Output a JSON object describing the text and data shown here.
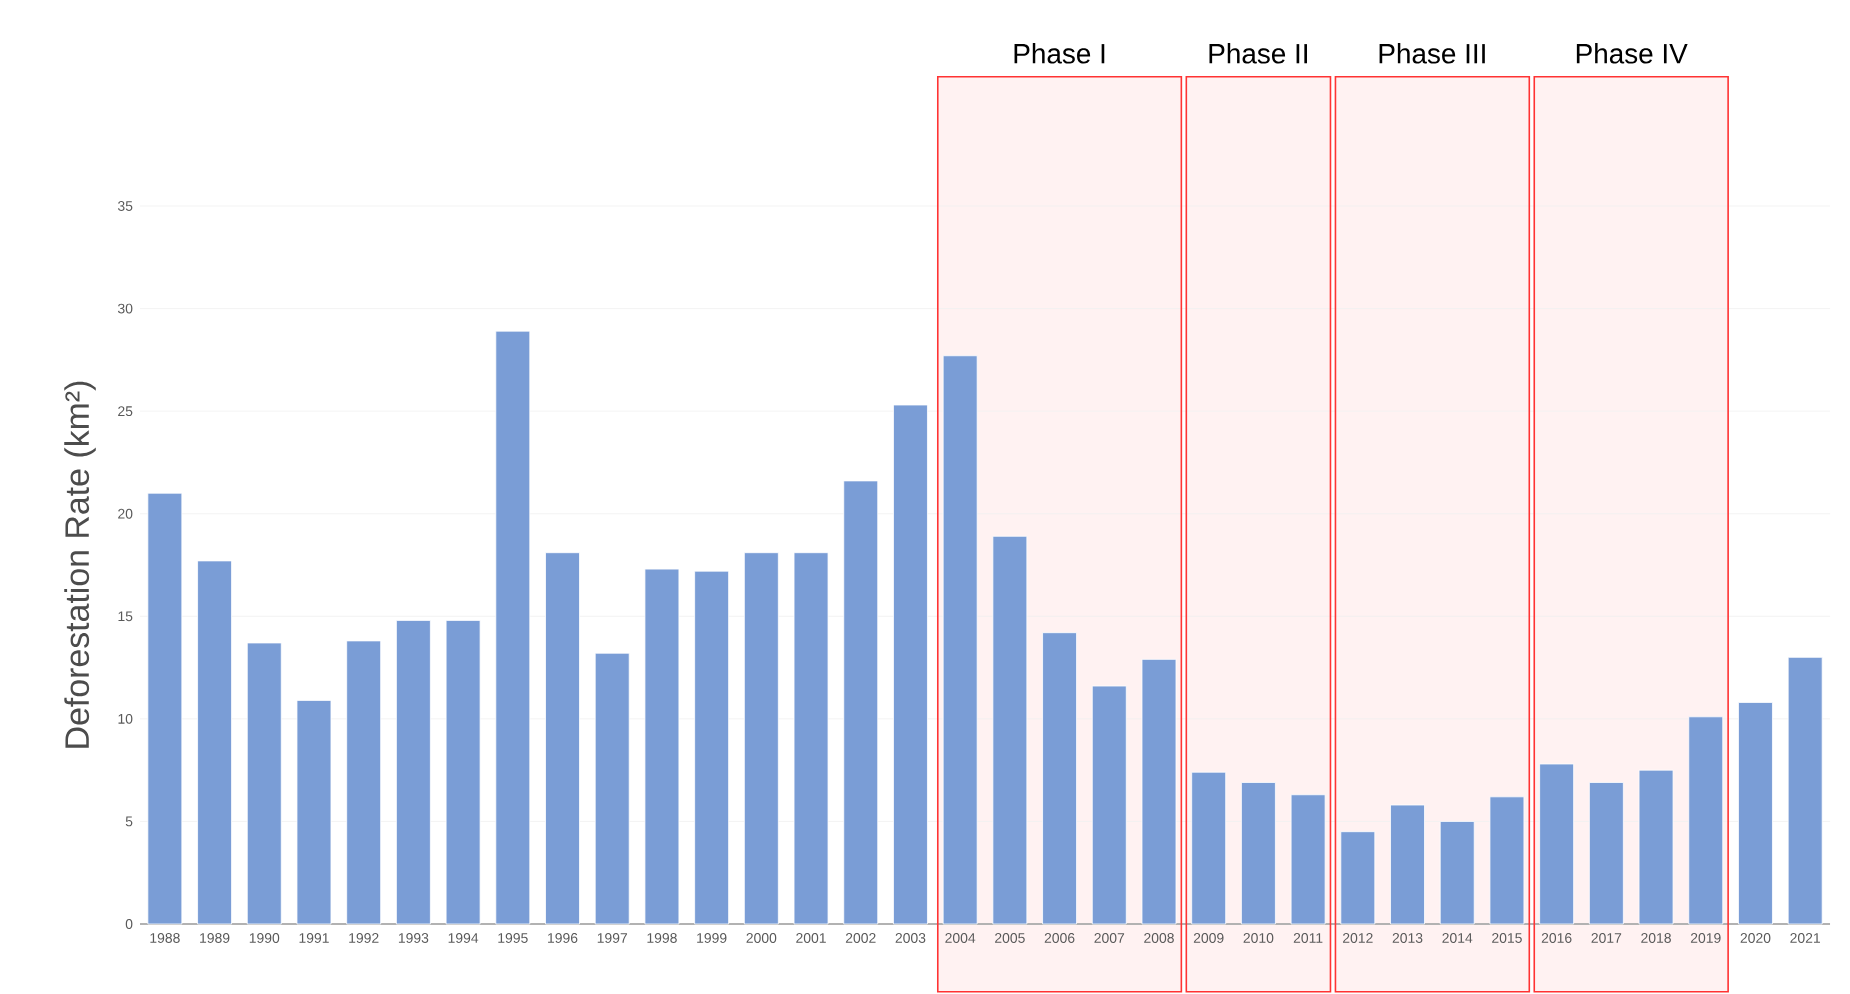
{
  "chart_data": {
    "type": "bar",
    "ylabel": "Deforestation Rate (km²)",
    "categories": [
      "1988",
      "1989",
      "1990",
      "1991",
      "1992",
      "1993",
      "1994",
      "1995",
      "1996",
      "1997",
      "1998",
      "1999",
      "2000",
      "2001",
      "2002",
      "2003",
      "2004",
      "2005",
      "2006",
      "2007",
      "2008",
      "2009",
      "2010",
      "2011",
      "2012",
      "2013",
      "2014",
      "2015",
      "2016",
      "2017",
      "2018",
      "2019",
      "2020",
      "2021"
    ],
    "values": [
      21.0,
      17.7,
      13.7,
      10.9,
      13.8,
      14.8,
      14.8,
      28.9,
      18.1,
      13.2,
      17.3,
      17.2,
      18.1,
      18.1,
      21.6,
      25.3,
      27.7,
      18.9,
      14.2,
      11.6,
      12.9,
      7.4,
      6.9,
      6.3,
      4.5,
      5.8,
      5.0,
      6.2,
      7.8,
      6.9,
      7.5,
      10.1,
      10.8,
      13.0
    ],
    "color": "#7a9dd6",
    "ylim": [
      0,
      35
    ],
    "yticks": [
      0,
      5,
      10,
      15,
      20,
      25,
      30,
      35
    ],
    "grid": "y",
    "bands": [
      {
        "axis": "x",
        "from": "2004",
        "to": "2008",
        "label": "Phase I"
      },
      {
        "axis": "x",
        "from": "2009",
        "to": "2011",
        "label": "Phase II"
      },
      {
        "axis": "x",
        "from": "2012",
        "to": "2015",
        "label": "Phase III"
      },
      {
        "axis": "x",
        "from": "2016",
        "to": "2019",
        "label": "Phase IV"
      }
    ]
  }
}
